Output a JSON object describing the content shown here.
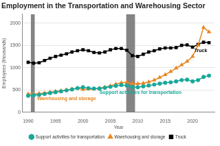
{
  "chart_data": {
    "type": "line",
    "title": "Employment in the Transportation and Warehousing Sector",
    "x_label": "Year",
    "y_label": "Employees (thousands)",
    "x": [
      1990,
      1991,
      1992,
      1993,
      1994,
      1995,
      1996,
      1997,
      1998,
      1999,
      2000,
      2001,
      2002,
      2003,
      2004,
      2005,
      2006,
      2007,
      2008,
      2009,
      2010,
      2011,
      2012,
      2013,
      2014,
      2015,
      2016,
      2017,
      2018,
      2019,
      2020,
      2021,
      2022,
      2023
    ],
    "series": [
      {
        "name": "Support activities for transportation",
        "color": "#1aa89a",
        "marker": "circle",
        "values": [
          370,
          380,
          390,
          410,
          430,
          450,
          470,
          490,
          510,
          540,
          560,
          540,
          530,
          530,
          550,
          570,
          590,
          610,
          600,
          560,
          560,
          580,
          600,
          620,
          640,
          660,
          670,
          690,
          720,
          730,
          690,
          720,
          790,
          820
        ]
      },
      {
        "name": "Warehousing and storage",
        "color": "#e8861e",
        "marker": "triangle",
        "values": [
          410,
          410,
          420,
          430,
          450,
          470,
          480,
          500,
          520,
          540,
          510,
          520,
          520,
          540,
          560,
          590,
          630,
          660,
          670,
          640,
          640,
          650,
          680,
          720,
          780,
          840,
          910,
          990,
          1060,
          1140,
          1250,
          1500,
          1900,
          1800
        ]
      },
      {
        "name": "Truck",
        "color": "#000000",
        "marker": "square",
        "values": [
          1120,
          1100,
          1110,
          1160,
          1210,
          1250,
          1280,
          1310,
          1350,
          1380,
          1400,
          1380,
          1340,
          1330,
          1350,
          1400,
          1430,
          1430,
          1390,
          1270,
          1250,
          1300,
          1350,
          1380,
          1420,
          1440,
          1440,
          1450,
          1500,
          1510,
          1460,
          1520,
          1570,
          1560
        ]
      }
    ],
    "xlim": [
      1989,
      2024
    ],
    "xticks": [
      1990,
      1995,
      2000,
      2005,
      2010,
      2015,
      2020
    ],
    "ylim": [
      0,
      2200
    ],
    "yticks": [
      0,
      500,
      1000,
      1500,
      2000
    ],
    "grid": true,
    "legend": "bottom",
    "shaded_periods": [
      {
        "start": 1990.5,
        "end": 1991.2
      },
      {
        "start": 2007.9,
        "end": 2009.5
      }
    ],
    "annotations": [
      {
        "text": "Truck",
        "x": 2021.5,
        "y": 1380,
        "color": "#000000"
      },
      {
        "text": "Warehousing and storage",
        "x": 1997,
        "y": 300,
        "color": "#e8861e"
      },
      {
        "text": "Support activities for transportation",
        "x": 2010.5,
        "y": 440,
        "color": "#1aa89a"
      }
    ]
  }
}
